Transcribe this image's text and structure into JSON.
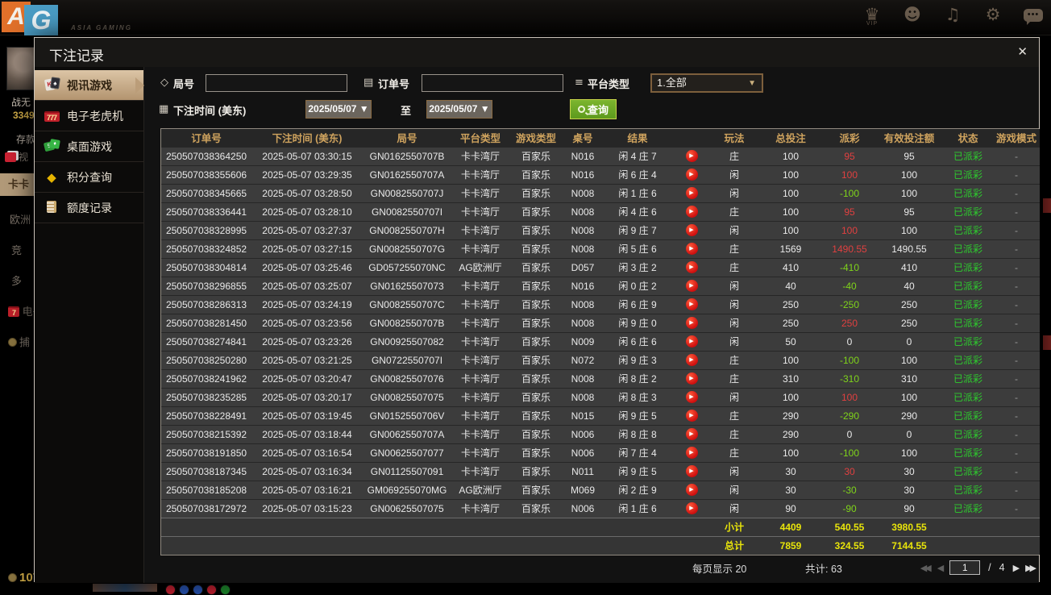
{
  "topbar": {
    "logo_a": "A",
    "logo_g": "G",
    "brand": "ASIA GAMING",
    "vip_label": "VIP",
    "icons": [
      "vip-icon",
      "service-icon",
      "music-icon",
      "settings-icon",
      "chat-icon"
    ]
  },
  "background": {
    "player_name": "战无",
    "points": "3349",
    "deposit_label": "存款",
    "lobby_video": "视",
    "lobby_items": [
      "卡卡",
      "欧洲",
      "竞",
      "多",
      "电子",
      "捕"
    ],
    "balance": "10750"
  },
  "dialog": {
    "title": "下注记录",
    "close": "✕",
    "sidebar": [
      {
        "label": "视讯游戏"
      },
      {
        "label": "电子老虎机"
      },
      {
        "label": "桌面游戏"
      },
      {
        "label": "积分查询"
      },
      {
        "label": "额度记录"
      }
    ],
    "filters": {
      "round_label": "局号",
      "order_label": "订单号",
      "platform_label": "平台类型",
      "platform_value": "1.全部",
      "time_label": "下注时间 (美东)",
      "date_from": "2025/05/07 ▼",
      "to_label": "至",
      "date_to": "2025/05/07 ▼",
      "search_label": "查询"
    },
    "table": {
      "headers": [
        "订单号",
        "下注时间 (美东)",
        "局号",
        "平台类型",
        "游戏类型",
        "桌号",
        "结果",
        "",
        "玩法",
        "总投注",
        "派彩",
        "有效投注额",
        "状态",
        "游戏模式"
      ],
      "rows": [
        {
          "order_no": "250507038364250",
          "time": "2025-05-07 03:30:15",
          "round_no": "GN0162550707B",
          "platform": "卡卡湾厅",
          "game_type": "百家乐",
          "table_no": "N016",
          "result": "闲 4 庄 7",
          "play": "庄",
          "total_bet": "100",
          "payout": "95",
          "valid_bet": "95",
          "status": "已派彩",
          "mode": "-"
        },
        {
          "order_no": "250507038355606",
          "time": "2025-05-07 03:29:35",
          "round_no": "GN0162550707A",
          "platform": "卡卡湾厅",
          "game_type": "百家乐",
          "table_no": "N016",
          "result": "闲 6 庄 4",
          "play": "闲",
          "total_bet": "100",
          "payout": "100",
          "valid_bet": "100",
          "status": "已派彩",
          "mode": "-"
        },
        {
          "order_no": "250507038345665",
          "time": "2025-05-07 03:28:50",
          "round_no": "GN0082550707J",
          "platform": "卡卡湾厅",
          "game_type": "百家乐",
          "table_no": "N008",
          "result": "闲 1 庄 6",
          "play": "闲",
          "total_bet": "100",
          "payout": "-100",
          "valid_bet": "100",
          "status": "已派彩",
          "mode": "-"
        },
        {
          "order_no": "250507038336441",
          "time": "2025-05-07 03:28:10",
          "round_no": "GN0082550707I",
          "platform": "卡卡湾厅",
          "game_type": "百家乐",
          "table_no": "N008",
          "result": "闲 4 庄 6",
          "play": "庄",
          "total_bet": "100",
          "payout": "95",
          "valid_bet": "95",
          "status": "已派彩",
          "mode": "-"
        },
        {
          "order_no": "250507038328995",
          "time": "2025-05-07 03:27:37",
          "round_no": "GN0082550707H",
          "platform": "卡卡湾厅",
          "game_type": "百家乐",
          "table_no": "N008",
          "result": "闲 9 庄 7",
          "play": "闲",
          "total_bet": "100",
          "payout": "100",
          "valid_bet": "100",
          "status": "已派彩",
          "mode": "-"
        },
        {
          "order_no": "250507038324852",
          "time": "2025-05-07 03:27:15",
          "round_no": "GN0082550707G",
          "platform": "卡卡湾厅",
          "game_type": "百家乐",
          "table_no": "N008",
          "result": "闲 5 庄 6",
          "play": "庄",
          "total_bet": "1569",
          "payout": "1490.55",
          "valid_bet": "1490.55",
          "status": "已派彩",
          "mode": "-"
        },
        {
          "order_no": "250507038304814",
          "time": "2025-05-07 03:25:46",
          "round_no": "GD057255070NC",
          "platform": "AG欧洲厅",
          "game_type": "百家乐",
          "table_no": "D057",
          "result": "闲 3 庄 2",
          "play": "庄",
          "total_bet": "410",
          "payout": "-410",
          "valid_bet": "410",
          "status": "已派彩",
          "mode": "-"
        },
        {
          "order_no": "250507038296855",
          "time": "2025-05-07 03:25:07",
          "round_no": "GN01625507073",
          "platform": "卡卡湾厅",
          "game_type": "百家乐",
          "table_no": "N016",
          "result": "闲 0 庄 2",
          "play": "闲",
          "total_bet": "40",
          "payout": "-40",
          "valid_bet": "40",
          "status": "已派彩",
          "mode": "-"
        },
        {
          "order_no": "250507038286313",
          "time": "2025-05-07 03:24:19",
          "round_no": "GN0082550707C",
          "platform": "卡卡湾厅",
          "game_type": "百家乐",
          "table_no": "N008",
          "result": "闲 6 庄 9",
          "play": "闲",
          "total_bet": "250",
          "payout": "-250",
          "valid_bet": "250",
          "status": "已派彩",
          "mode": "-"
        },
        {
          "order_no": "250507038281450",
          "time": "2025-05-07 03:23:56",
          "round_no": "GN0082550707B",
          "platform": "卡卡湾厅",
          "game_type": "百家乐",
          "table_no": "N008",
          "result": "闲 9 庄 0",
          "play": "闲",
          "total_bet": "250",
          "payout": "250",
          "valid_bet": "250",
          "status": "已派彩",
          "mode": "-"
        },
        {
          "order_no": "250507038274841",
          "time": "2025-05-07 03:23:26",
          "round_no": "GN00925507082",
          "platform": "卡卡湾厅",
          "game_type": "百家乐",
          "table_no": "N009",
          "result": "闲 6 庄 6",
          "play": "闲",
          "total_bet": "50",
          "payout": "0",
          "valid_bet": "0",
          "status": "已派彩",
          "mode": "-"
        },
        {
          "order_no": "250507038250280",
          "time": "2025-05-07 03:21:25",
          "round_no": "GN0722550707I",
          "platform": "卡卡湾厅",
          "game_type": "百家乐",
          "table_no": "N072",
          "result": "闲 9 庄 3",
          "play": "庄",
          "total_bet": "100",
          "payout": "-100",
          "valid_bet": "100",
          "status": "已派彩",
          "mode": "-"
        },
        {
          "order_no": "250507038241962",
          "time": "2025-05-07 03:20:47",
          "round_no": "GN00825507076",
          "platform": "卡卡湾厅",
          "game_type": "百家乐",
          "table_no": "N008",
          "result": "闲 8 庄 2",
          "play": "庄",
          "total_bet": "310",
          "payout": "-310",
          "valid_bet": "310",
          "status": "已派彩",
          "mode": "-"
        },
        {
          "order_no": "250507038235285",
          "time": "2025-05-07 03:20:17",
          "round_no": "GN00825507075",
          "platform": "卡卡湾厅",
          "game_type": "百家乐",
          "table_no": "N008",
          "result": "闲 8 庄 3",
          "play": "闲",
          "total_bet": "100",
          "payout": "100",
          "valid_bet": "100",
          "status": "已派彩",
          "mode": "-"
        },
        {
          "order_no": "250507038228491",
          "time": "2025-05-07 03:19:45",
          "round_no": "GN0152550706V",
          "platform": "卡卡湾厅",
          "game_type": "百家乐",
          "table_no": "N015",
          "result": "闲 9 庄 5",
          "play": "庄",
          "total_bet": "290",
          "payout": "-290",
          "valid_bet": "290",
          "status": "已派彩",
          "mode": "-"
        },
        {
          "order_no": "250507038215392",
          "time": "2025-05-07 03:18:44",
          "round_no": "GN0062550707A",
          "platform": "卡卡湾厅",
          "game_type": "百家乐",
          "table_no": "N006",
          "result": "闲 8 庄 8",
          "play": "庄",
          "total_bet": "290",
          "payout": "0",
          "valid_bet": "0",
          "status": "已派彩",
          "mode": "-"
        },
        {
          "order_no": "250507038191850",
          "time": "2025-05-07 03:16:54",
          "round_no": "GN00625507077",
          "platform": "卡卡湾厅",
          "game_type": "百家乐",
          "table_no": "N006",
          "result": "闲 7 庄 4",
          "play": "庄",
          "total_bet": "100",
          "payout": "-100",
          "valid_bet": "100",
          "status": "已派彩",
          "mode": "-"
        },
        {
          "order_no": "250507038187345",
          "time": "2025-05-07 03:16:34",
          "round_no": "GN01125507091",
          "platform": "卡卡湾厅",
          "game_type": "百家乐",
          "table_no": "N011",
          "result": "闲 9 庄 5",
          "play": "闲",
          "total_bet": "30",
          "payout": "30",
          "valid_bet": "30",
          "status": "已派彩",
          "mode": "-"
        },
        {
          "order_no": "250507038185208",
          "time": "2025-05-07 03:16:21",
          "round_no": "GM069255070MG",
          "platform": "AG欧洲厅",
          "game_type": "百家乐",
          "table_no": "M069",
          "result": "闲 2 庄 9",
          "play": "闲",
          "total_bet": "30",
          "payout": "-30",
          "valid_bet": "30",
          "status": "已派彩",
          "mode": "-"
        },
        {
          "order_no": "250507038172972",
          "time": "2025-05-07 03:15:23",
          "round_no": "GN00625507075",
          "platform": "卡卡湾厅",
          "game_type": "百家乐",
          "table_no": "N006",
          "result": "闲 1 庄 6",
          "play": "闲",
          "total_bet": "90",
          "payout": "-90",
          "valid_bet": "90",
          "status": "已派彩",
          "mode": "-"
        }
      ],
      "subtotal": {
        "label": "小计",
        "total_bet": "4409",
        "payout": "540.55",
        "valid_bet": "3980.55"
      },
      "total": {
        "label": "总计",
        "total_bet": "7859",
        "payout": "324.55",
        "valid_bet": "7144.55"
      }
    },
    "pagination": {
      "per_page_label": "每页显示 20",
      "total_label": "共计: 63",
      "page": "1",
      "separator": "/",
      "total_pages": "4"
    }
  },
  "colors": {
    "accent_gold": "#cfa35e",
    "win_red": "#e04040",
    "loss_green": "#7fd41a",
    "status_green": "#2ecc2e",
    "totals_yellow": "#e8e40a",
    "button_green": "#6aa626",
    "active_tab_tan": "#c4a67f"
  }
}
